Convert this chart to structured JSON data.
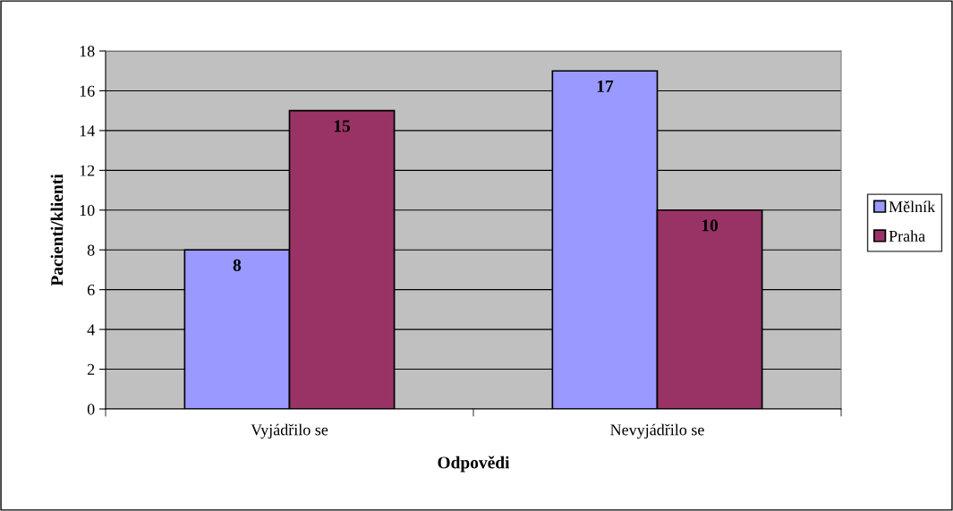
{
  "chart_data": {
    "type": "bar",
    "xlabel": "Odpovědi",
    "ylabel": "Pacienti/klienti",
    "categories": [
      "Vyjádřilo se",
      "Nevyjádřilo se"
    ],
    "series": [
      {
        "name": "Mělník",
        "color": "#9999ff",
        "values": [
          8,
          17
        ]
      },
      {
        "name": "Praha",
        "color": "#993366",
        "values": [
          15,
          10
        ]
      }
    ],
    "ylim": [
      0,
      18
    ],
    "yticks": [
      0,
      2,
      4,
      6,
      8,
      10,
      12,
      14,
      16,
      18
    ],
    "grid": "y",
    "legend": "right",
    "data_labels": true
  }
}
